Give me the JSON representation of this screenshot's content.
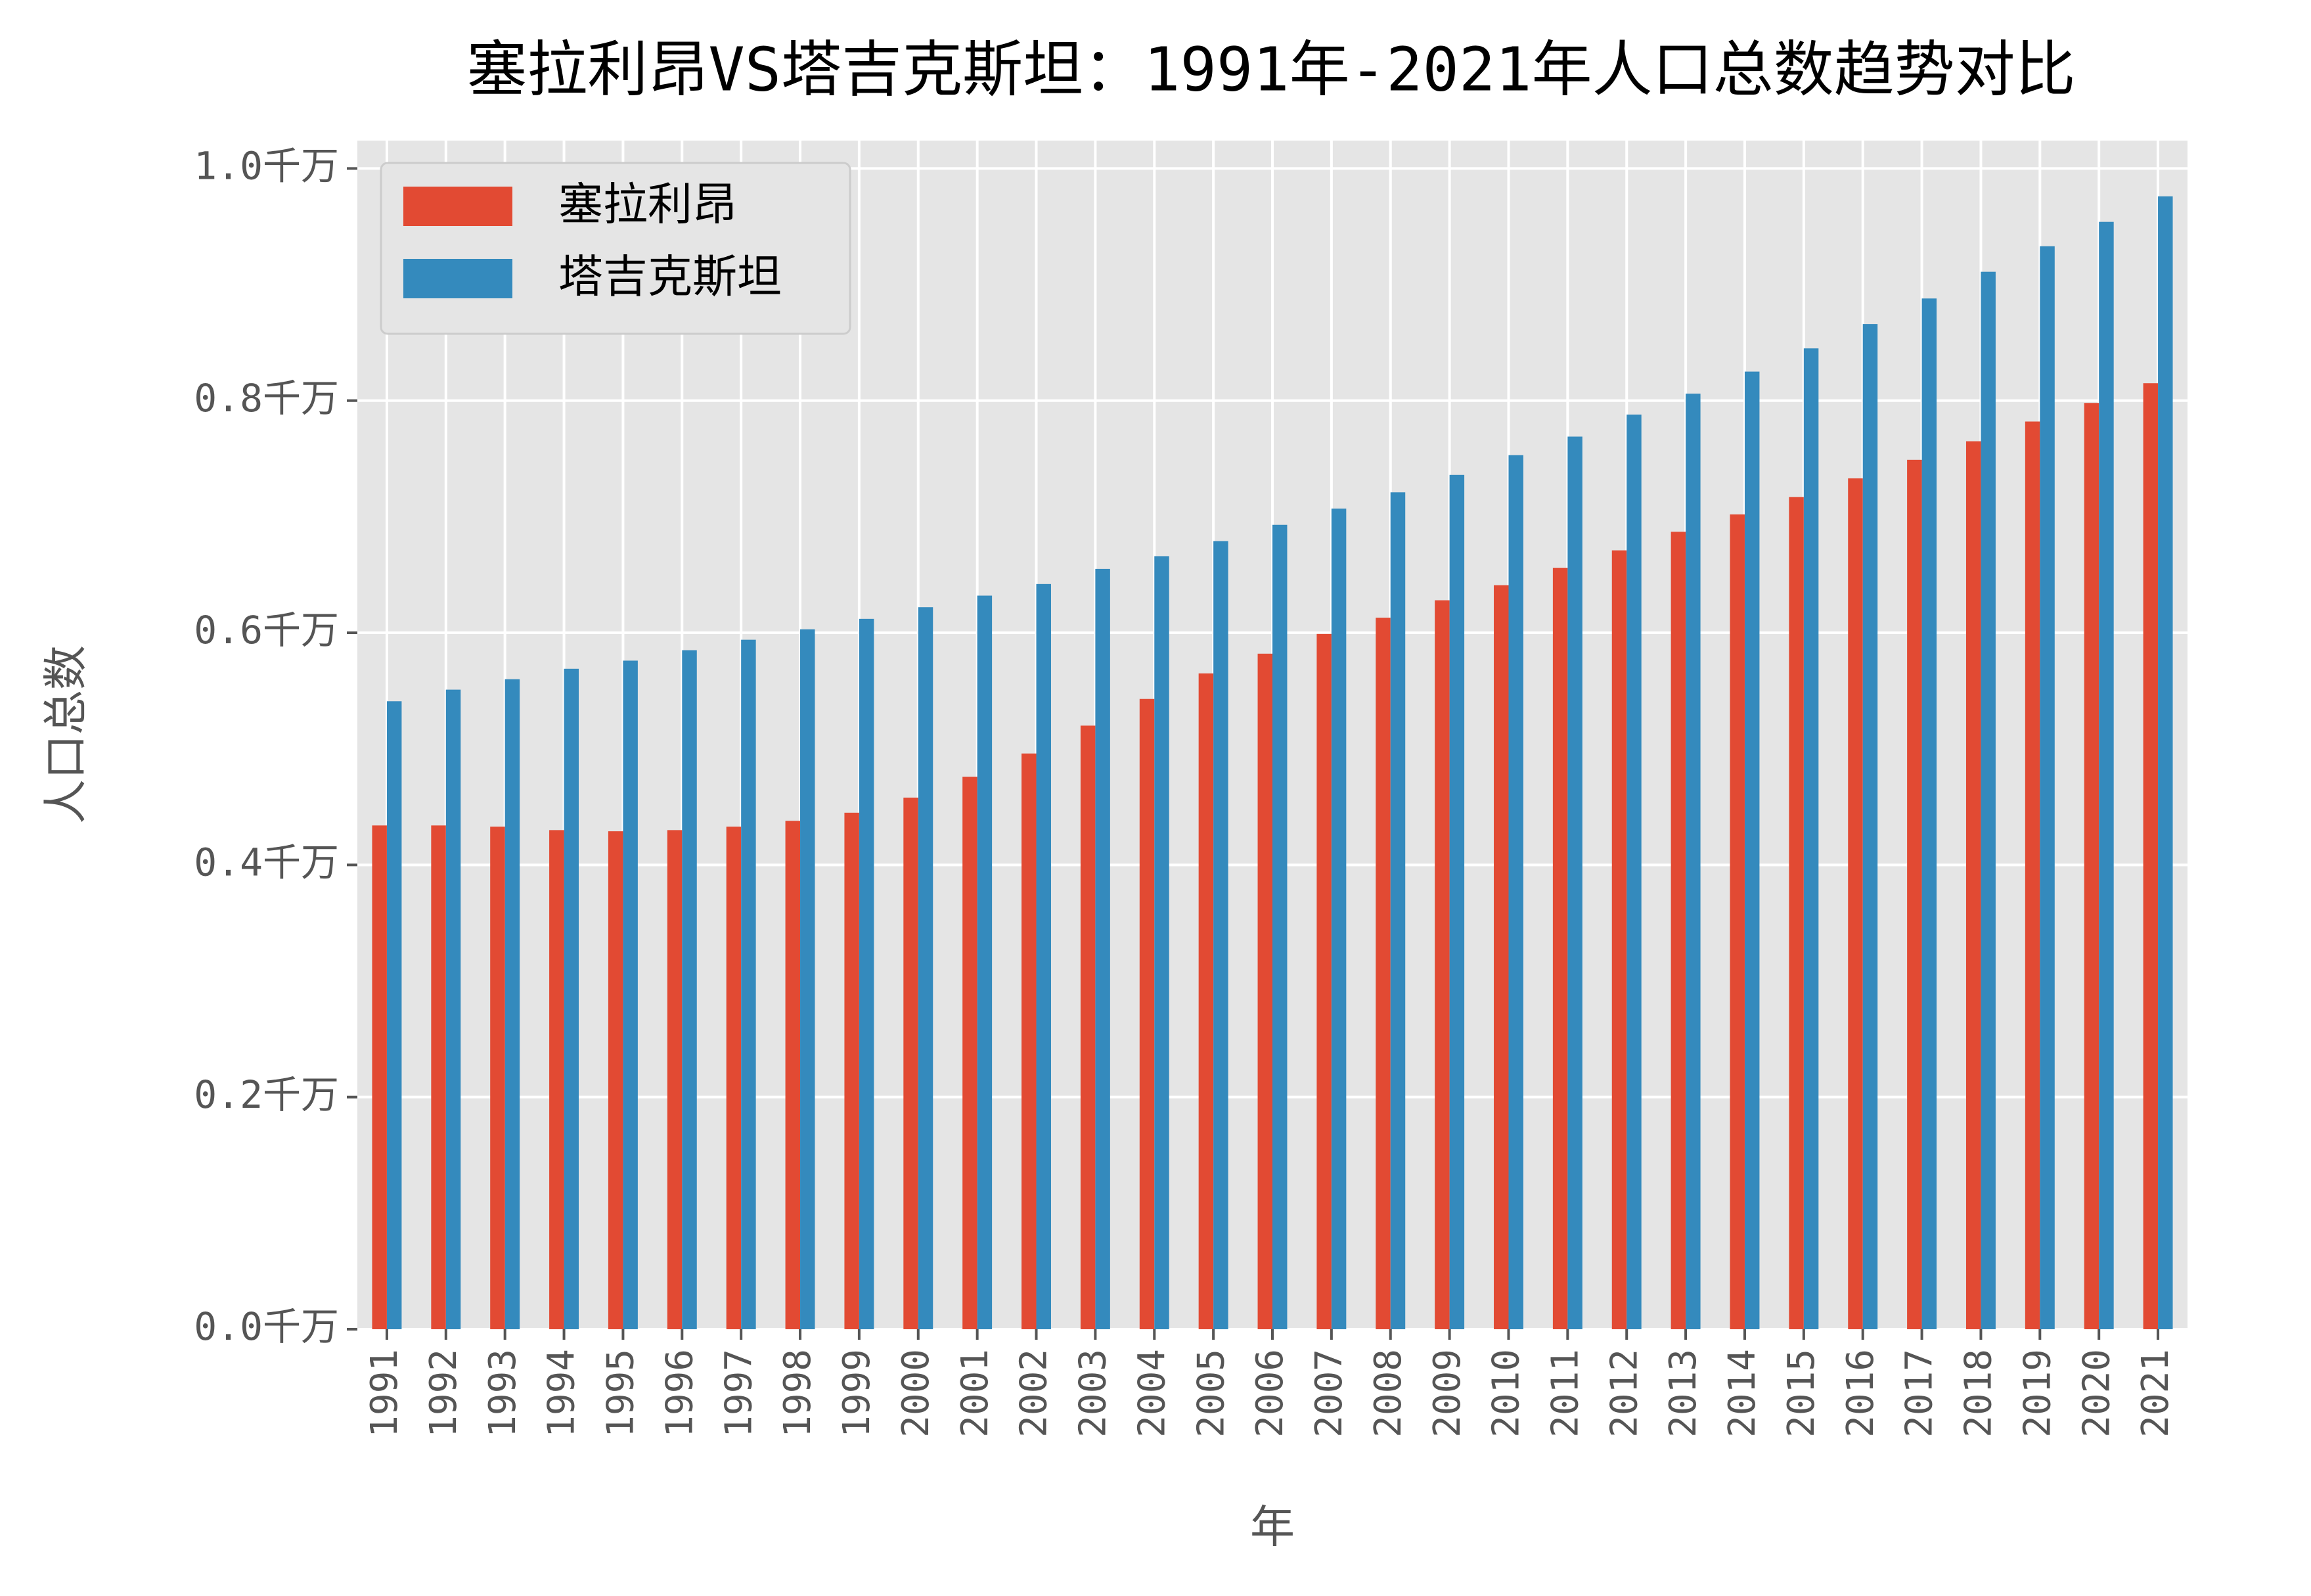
{
  "chart_data": {
    "type": "bar",
    "title": "塞拉利昂VS塔吉克斯坦：1991年-2021年人口总数趋势对比",
    "x_label": "年",
    "y_label": "人口总数",
    "categories": [
      "1991",
      "1992",
      "1993",
      "1994",
      "1995",
      "1996",
      "1997",
      "1998",
      "1999",
      "2000",
      "2001",
      "2002",
      "2003",
      "2004",
      "2005",
      "2006",
      "2007",
      "2008",
      "2009",
      "2010",
      "2011",
      "2012",
      "2013",
      "2014",
      "2015",
      "2016",
      "2017",
      "2018",
      "2019",
      "2020",
      "2021"
    ],
    "series": [
      {
        "name": "塞拉利昂",
        "color": "#e24a33",
        "values": [
          0.434,
          0.434,
          0.433,
          0.43,
          0.429,
          0.43,
          0.433,
          0.438,
          0.445,
          0.458,
          0.476,
          0.496,
          0.52,
          0.543,
          0.565,
          0.582,
          0.599,
          0.613,
          0.628,
          0.641,
          0.656,
          0.671,
          0.687,
          0.702,
          0.717,
          0.733,
          0.749,
          0.765,
          0.782,
          0.798,
          0.815
        ]
      },
      {
        "name": "塔吉克斯坦",
        "color": "#348abd",
        "values": [
          0.541,
          0.551,
          0.56,
          0.569,
          0.576,
          0.585,
          0.594,
          0.603,
          0.612,
          0.622,
          0.632,
          0.642,
          0.655,
          0.666,
          0.679,
          0.693,
          0.707,
          0.721,
          0.736,
          0.753,
          0.769,
          0.788,
          0.806,
          0.825,
          0.845,
          0.866,
          0.888,
          0.911,
          0.933,
          0.954,
          0.976
        ]
      }
    ],
    "ylim": [
      0,
      1.024
    ],
    "yticks": [
      {
        "value": 0,
        "label": "0.0千万"
      },
      {
        "value": 0.2,
        "label": "0.2千万"
      },
      {
        "value": 0.4,
        "label": "0.4千万"
      },
      {
        "value": 0.6,
        "label": "0.6千万"
      },
      {
        "value": 0.8,
        "label": "0.8千万"
      },
      {
        "value": 1.0,
        "label": "1.0千万"
      }
    ],
    "grid": true,
    "legend": "upper left"
  }
}
